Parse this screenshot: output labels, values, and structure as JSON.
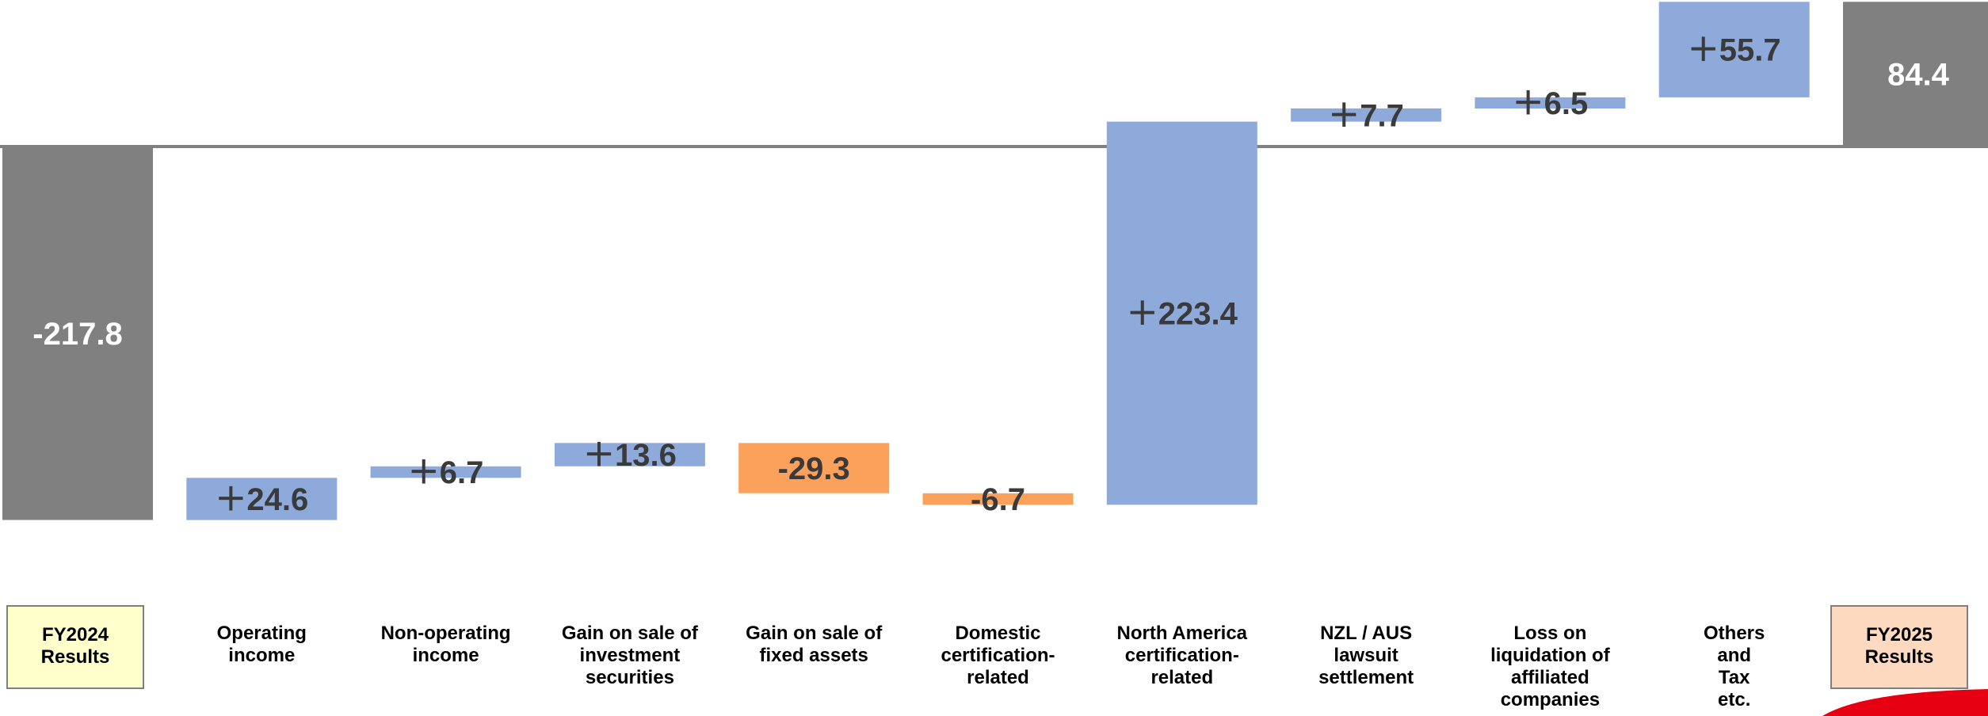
{
  "colors": {
    "total": "#808080",
    "increase": "#8eaadb",
    "decrease": "#fca15b",
    "baseline": "#808080",
    "value_text_dark": "#3a3a3a",
    "value_text_light": "#ffffff",
    "start_box_fill": "#ffffcc",
    "end_box_fill": "#fcd9bf",
    "accent": "#e60012"
  },
  "chart_data": {
    "type": "waterfall",
    "title": "",
    "xlabel": "",
    "ylabel": "",
    "baseline": 0,
    "ylim": [
      -230,
      98
    ],
    "grid": false,
    "categories": [
      [
        "FY2024",
        "Results"
      ],
      [
        "Operating",
        "income"
      ],
      [
        "Non-operating",
        "income"
      ],
      [
        "Gain on sale of",
        "investment",
        "securities"
      ],
      [
        "Gain on sale of",
        "fixed assets"
      ],
      [
        "Domestic",
        "certification-",
        "related"
      ],
      [
        "North America",
        "certification-",
        "related"
      ],
      [
        "NZL / AUS",
        "lawsuit",
        "settlement"
      ],
      [
        "Loss on",
        "liquidation of",
        "affiliated",
        "companies"
      ],
      [
        "Others",
        "and",
        "Tax",
        "etc."
      ],
      [
        "FY2025",
        "Results"
      ]
    ],
    "values": [
      -217.8,
      24.6,
      6.7,
      13.6,
      -29.3,
      -6.7,
      223.4,
      7.7,
      6.5,
      55.7,
      84.4
    ],
    "kinds": [
      "total",
      "change",
      "change",
      "change",
      "change",
      "change",
      "change",
      "change",
      "change",
      "change",
      "total"
    ],
    "value_labels": [
      "-217.8",
      "＋24.6",
      "＋6.7",
      "＋13.6",
      "-29.3",
      "-6.7",
      "＋223.4",
      "＋7.7",
      "＋6.5",
      "＋55.7",
      "84.4"
    ]
  }
}
